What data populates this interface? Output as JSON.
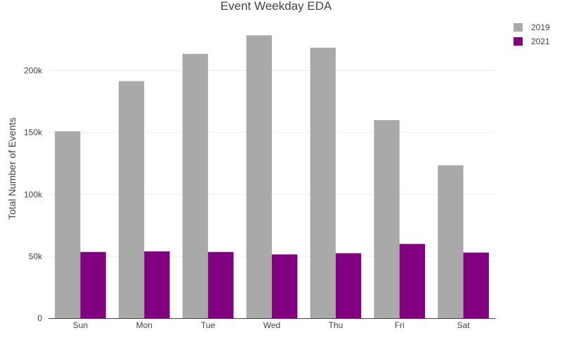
{
  "chart_data": {
    "type": "bar",
    "title": "Event Weekday EDA",
    "xlabel": "",
    "ylabel": "Total Number of Events",
    "categories": [
      "Sun",
      "Mon",
      "Tue",
      "Wed",
      "Thu",
      "Fri",
      "Sat"
    ],
    "series": [
      {
        "name": "2019",
        "color": "#a9a9a9",
        "values": [
          151000,
          191500,
          213500,
          228500,
          218500,
          160000,
          123500
        ]
      },
      {
        "name": "2021",
        "color": "#800080",
        "values": [
          53500,
          54000,
          53500,
          51500,
          52500,
          60000,
          53000
        ]
      }
    ],
    "ylim": [
      0,
      240000
    ],
    "yticks": [
      0,
      50000,
      100000,
      150000,
      200000
    ],
    "ytick_labels": [
      "0",
      "50k",
      "100k",
      "150k",
      "200k"
    ],
    "grid": true,
    "legend_position": "top-right"
  }
}
